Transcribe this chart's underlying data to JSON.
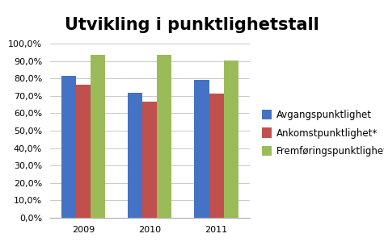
{
  "title": "Utvikling i punktlighetstall",
  "years": [
    "2009",
    "2010",
    "2011"
  ],
  "series": [
    {
      "label": "Avgangspunktlighet",
      "values": [
        0.815,
        0.716,
        0.791
      ],
      "color": "#4472C4"
    },
    {
      "label": "Ankomstpunktlighet*",
      "values": [
        0.766,
        0.667,
        0.711
      ],
      "color": "#C0504D"
    },
    {
      "label": "Fremføringspunktlighet",
      "values": [
        0.937,
        0.937,
        0.901
      ],
      "color": "#9BBB59"
    }
  ],
  "ylim": [
    0.0,
    1.0
  ],
  "yticks": [
    0.0,
    0.1,
    0.2,
    0.3,
    0.4,
    0.5,
    0.6,
    0.7,
    0.8,
    0.9,
    1.0
  ],
  "background_color": "#FFFFFF",
  "title_fontsize": 15,
  "tick_fontsize": 8,
  "legend_fontsize": 8.5,
  "bar_width": 0.22
}
